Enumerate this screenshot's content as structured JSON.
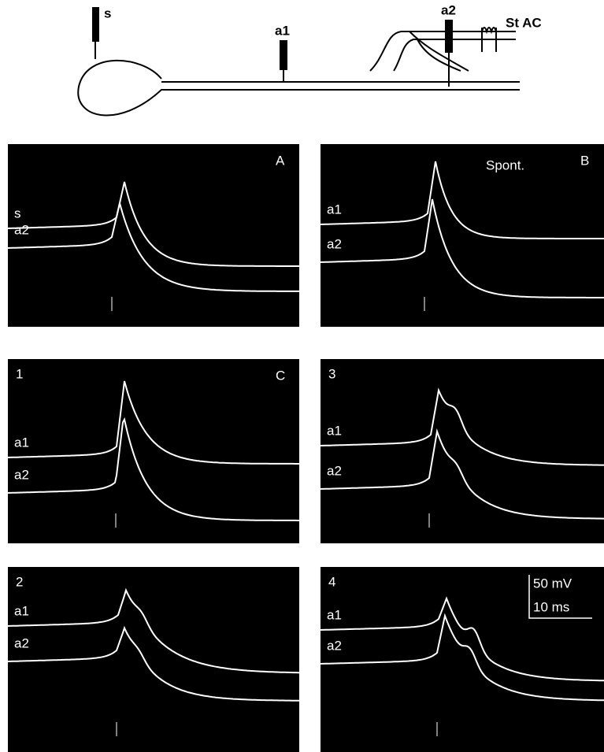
{
  "diagram": {
    "labels": {
      "soma_electrode": "s",
      "axon_electrode_1": "a1",
      "axon_electrode_2": "a2",
      "stimulus": "St AC"
    }
  },
  "panels": [
    {
      "letter": "A",
      "traces": [
        "s",
        "a2"
      ]
    },
    {
      "letter": "B",
      "note": "Spont.",
      "traces": [
        "a1",
        "a2"
      ]
    },
    {
      "number": "1",
      "letter": "C",
      "traces": [
        "a1",
        "a2"
      ]
    },
    {
      "number": "3",
      "traces": [
        "a1",
        "a2"
      ]
    },
    {
      "number": "2",
      "traces": [
        "a1",
        "a2"
      ]
    },
    {
      "number": "4",
      "traces": [
        "a1",
        "a2"
      ],
      "scale_bar": {
        "voltage": "50 mV",
        "time": "10 ms"
      }
    }
  ]
}
